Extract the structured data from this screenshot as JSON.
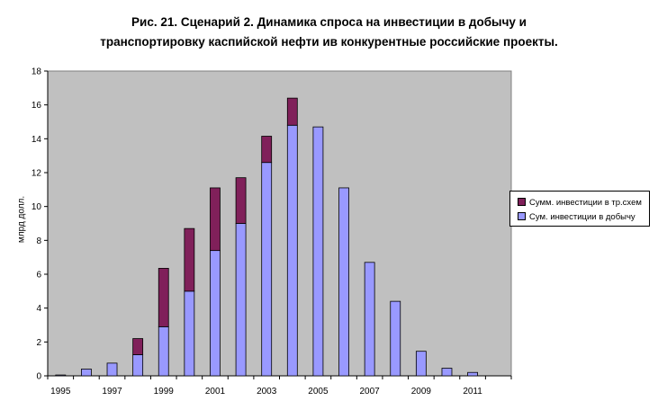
{
  "chart_data": {
    "type": "bar",
    "stacked": true,
    "title_line1": "Рис. 21. Сценарий 2. Динамика спроса на инвестиции в добычу и",
    "title_line2": "транспортировку каспийской нефти ив конкурентные российские проекты.",
    "xlabel": "",
    "ylabel": "млрд долл.",
    "ylim": [
      0,
      18
    ],
    "yticks": [
      0,
      2,
      4,
      6,
      8,
      10,
      12,
      14,
      16,
      18
    ],
    "categories": [
      1995,
      1996,
      1997,
      1998,
      1999,
      2000,
      2001,
      2002,
      2003,
      2004,
      2005,
      2006,
      2007,
      2008,
      2009,
      2010,
      2011,
      2012
    ],
    "xtick_labels": [
      "1995",
      "1997",
      "1999",
      "2001",
      "2003",
      "2005",
      "2007",
      "2009",
      "2011"
    ],
    "series": [
      {
        "name": "Сум. инвестиции в добычу",
        "color": "#9999ff",
        "values": [
          0.05,
          0.4,
          0.75,
          1.25,
          2.9,
          5.0,
          7.4,
          9.0,
          12.6,
          14.8,
          14.7,
          11.1,
          6.7,
          4.4,
          1.45,
          0.45,
          0.2,
          0
        ]
      },
      {
        "name": "Сумм. инвестиции в тр.схем",
        "color": "#80205a",
        "values": [
          0,
          0,
          0,
          0.95,
          3.45,
          3.7,
          3.7,
          2.7,
          1.55,
          1.6,
          0,
          0,
          0,
          0,
          0,
          0,
          0,
          0
        ]
      }
    ],
    "plot_background": "#c0c0c0",
    "grid": false,
    "legend_position": "right"
  }
}
